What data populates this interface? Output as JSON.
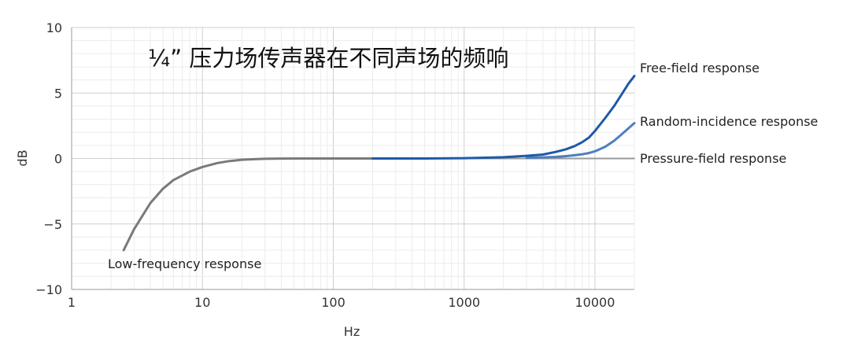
{
  "chart_data": {
    "type": "line",
    "title": "¼” 压力场传声器在不同声场的频响",
    "xlabel": "Hz",
    "ylabel": "dB",
    "x_scale": "log",
    "xlim": [
      1,
      20000
    ],
    "ylim": [
      -10,
      10
    ],
    "x_ticks": [
      1,
      10,
      100,
      1000,
      10000
    ],
    "x_tick_labels": [
      "1",
      "10",
      "100",
      "1000",
      "10000"
    ],
    "y_ticks": [
      10,
      5,
      0,
      -5,
      -10
    ],
    "y_tick_labels": [
      "10",
      "5",
      "0",
      "−5",
      "−10"
    ],
    "grid": true,
    "annotations": {
      "free_field": "Free-field response",
      "random_incidence": "Random-incidence response",
      "pressure_field": "Pressure-field response",
      "low_frequency": "Low-frequency response"
    },
    "series": [
      {
        "color": "#7a7a7a",
        "x": [
          2.5,
          3,
          4,
          5,
          6,
          8,
          10,
          13,
          16,
          20,
          25,
          30,
          40,
          60,
          100,
          150,
          200
        ],
        "y": [
          -7.0,
          -5.4,
          -3.4,
          -2.3,
          -1.65,
          -1.0,
          -0.65,
          -0.35,
          -0.2,
          -0.1,
          -0.05,
          -0.02,
          -0.01,
          0,
          0,
          0,
          0
        ]
      },
      {
        "color": "#1f5aa6",
        "x": [
          200,
          500,
          1000,
          2000,
          3000,
          4000,
          5000,
          6000,
          7000,
          8000,
          9000,
          10000,
          12000,
          14000,
          16000,
          18000,
          20000
        ],
        "y": [
          0,
          0,
          0.02,
          0.1,
          0.2,
          0.3,
          0.5,
          0.7,
          0.95,
          1.25,
          1.6,
          2.1,
          3.1,
          4.0,
          4.9,
          5.7,
          6.3
        ]
      },
      {
        "color": "#4d7fbf",
        "x": [
          3000,
          4000,
          5000,
          6000,
          7000,
          8000,
          9000,
          10000,
          12000,
          14000,
          16000,
          18000,
          20000
        ],
        "y": [
          0.05,
          0.08,
          0.12,
          0.18,
          0.25,
          0.32,
          0.42,
          0.55,
          0.9,
          1.35,
          1.85,
          2.3,
          2.7
        ]
      },
      {
        "color": "#9a9a9a",
        "x": [
          200,
          20000
        ],
        "y": [
          0,
          0
        ]
      }
    ]
  }
}
